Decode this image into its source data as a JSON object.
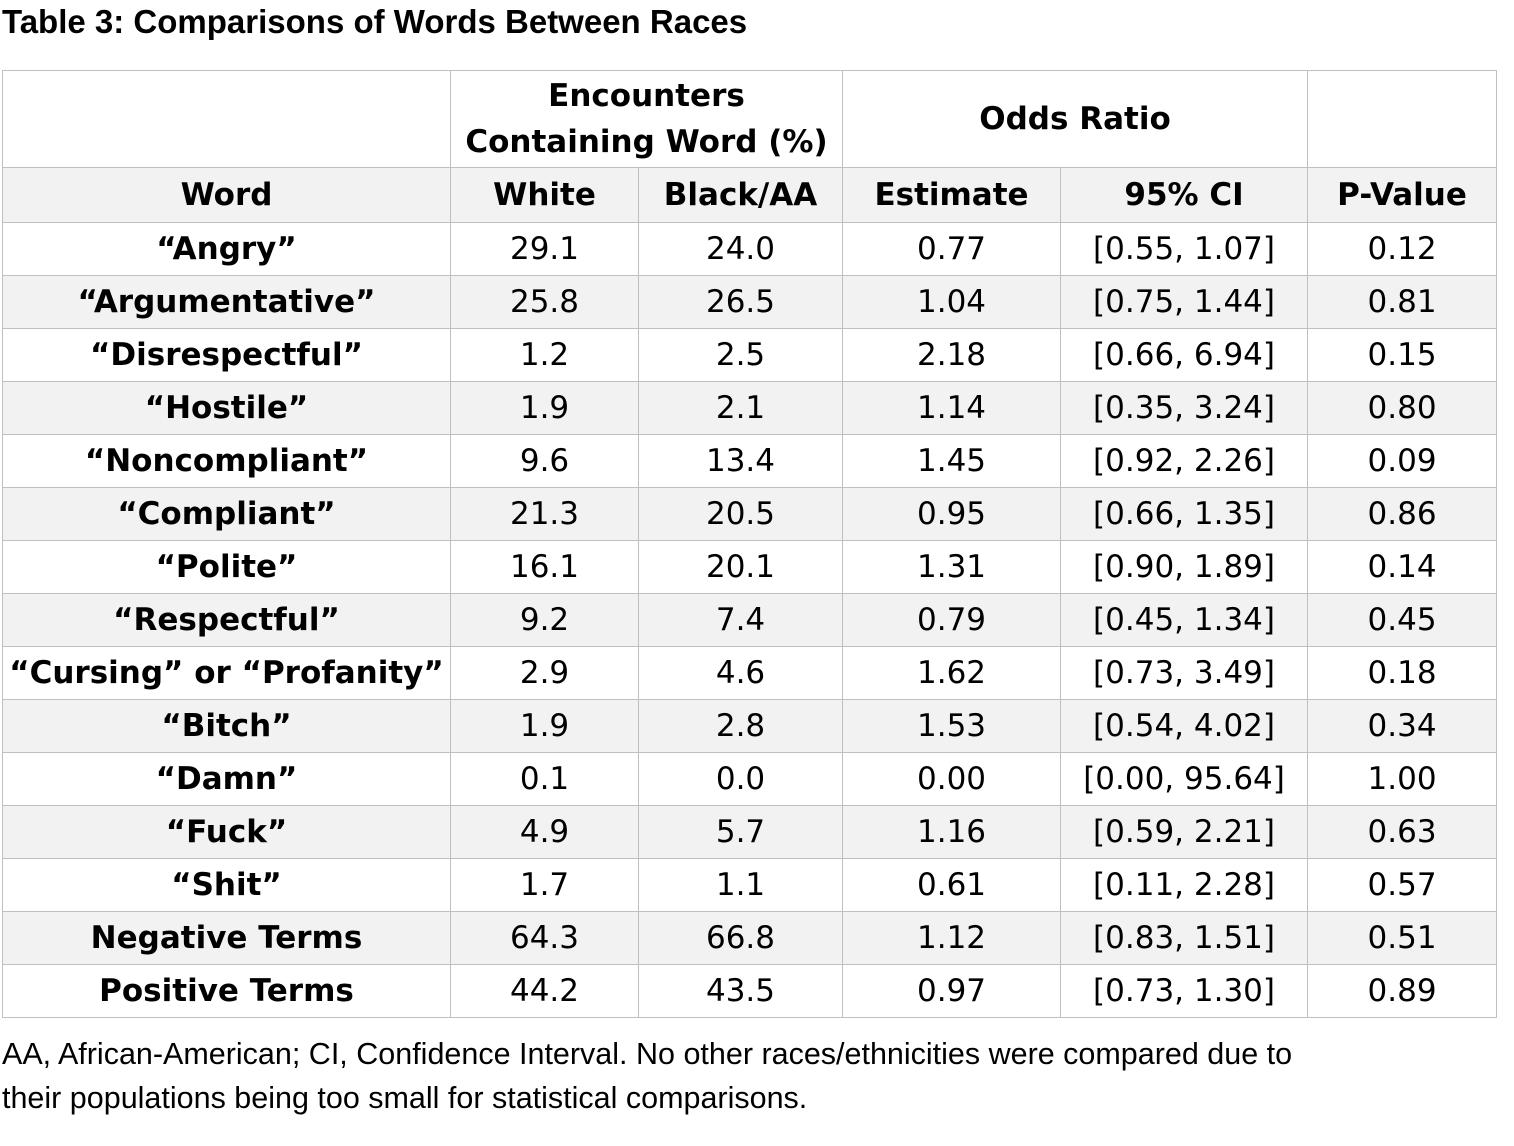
{
  "title": "Table 3: Comparisons of Words Between Races",
  "header": {
    "group_word": "",
    "group_encounters_line1": "Encounters",
    "group_encounters_line2": "Containing Word (%)",
    "group_odds": "Odds Ratio",
    "group_p": "",
    "col_word": "Word",
    "col_white": "White",
    "col_black": "Black/AA",
    "col_estimate": "Estimate",
    "col_ci": "95% CI",
    "col_p": "P-Value"
  },
  "rows": [
    {
      "word": "“Angry”",
      "white": "29.1",
      "black": "24.0",
      "estimate": "0.77",
      "ci": "[0.55, 1.07]",
      "p": "0.12"
    },
    {
      "word": "“Argumentative”",
      "white": "25.8",
      "black": "26.5",
      "estimate": "1.04",
      "ci": "[0.75, 1.44]",
      "p": "0.81"
    },
    {
      "word": "“Disrespectful”",
      "white": "1.2",
      "black": "2.5",
      "estimate": "2.18",
      "ci": "[0.66, 6.94]",
      "p": "0.15"
    },
    {
      "word": "“Hostile”",
      "white": "1.9",
      "black": "2.1",
      "estimate": "1.14",
      "ci": "[0.35, 3.24]",
      "p": "0.80"
    },
    {
      "word": "“Noncompliant”",
      "white": "9.6",
      "black": "13.4",
      "estimate": "1.45",
      "ci": "[0.92, 2.26]",
      "p": "0.09"
    },
    {
      "word": "“Compliant”",
      "white": "21.3",
      "black": "20.5",
      "estimate": "0.95",
      "ci": "[0.66, 1.35]",
      "p": "0.86"
    },
    {
      "word": "“Polite”",
      "white": "16.1",
      "black": "20.1",
      "estimate": "1.31",
      "ci": "[0.90, 1.89]",
      "p": "0.14"
    },
    {
      "word": "“Respectful”",
      "white": "9.2",
      "black": "7.4",
      "estimate": "0.79",
      "ci": "[0.45, 1.34]",
      "p": "0.45"
    },
    {
      "word": "“Cursing” or “Profanity”",
      "white": "2.9",
      "black": "4.6",
      "estimate": "1.62",
      "ci": "[0.73, 3.49]",
      "p": "0.18"
    },
    {
      "word": "“Bitch”",
      "white": "1.9",
      "black": "2.8",
      "estimate": "1.53",
      "ci": "[0.54, 4.02]",
      "p": "0.34"
    },
    {
      "word": "“Damn”",
      "white": "0.1",
      "black": "0.0",
      "estimate": "0.00",
      "ci": "[0.00, 95.64]",
      "p": "1.00"
    },
    {
      "word": "“Fuck”",
      "white": "4.9",
      "black": "5.7",
      "estimate": "1.16",
      "ci": "[0.59, 2.21]",
      "p": "0.63"
    },
    {
      "word": "“Shit”",
      "white": "1.7",
      "black": "1.1",
      "estimate": "0.61",
      "ci": "[0.11, 2.28]",
      "p": "0.57"
    },
    {
      "word": "Negative Terms",
      "white": "64.3",
      "black": "66.8",
      "estimate": "1.12",
      "ci": "[0.83, 1.51]",
      "p": "0.51"
    },
    {
      "word": "Positive Terms",
      "white": "44.2",
      "black": "43.5",
      "estimate": "0.97",
      "ci": "[0.73, 1.30]",
      "p": "0.89"
    }
  ],
  "footnote": {
    "line1": "AA, African-American; CI, Confidence Interval. No other races/ethnicities were compared due to",
    "line2": "their populations being too small for statistical comparisons."
  }
}
